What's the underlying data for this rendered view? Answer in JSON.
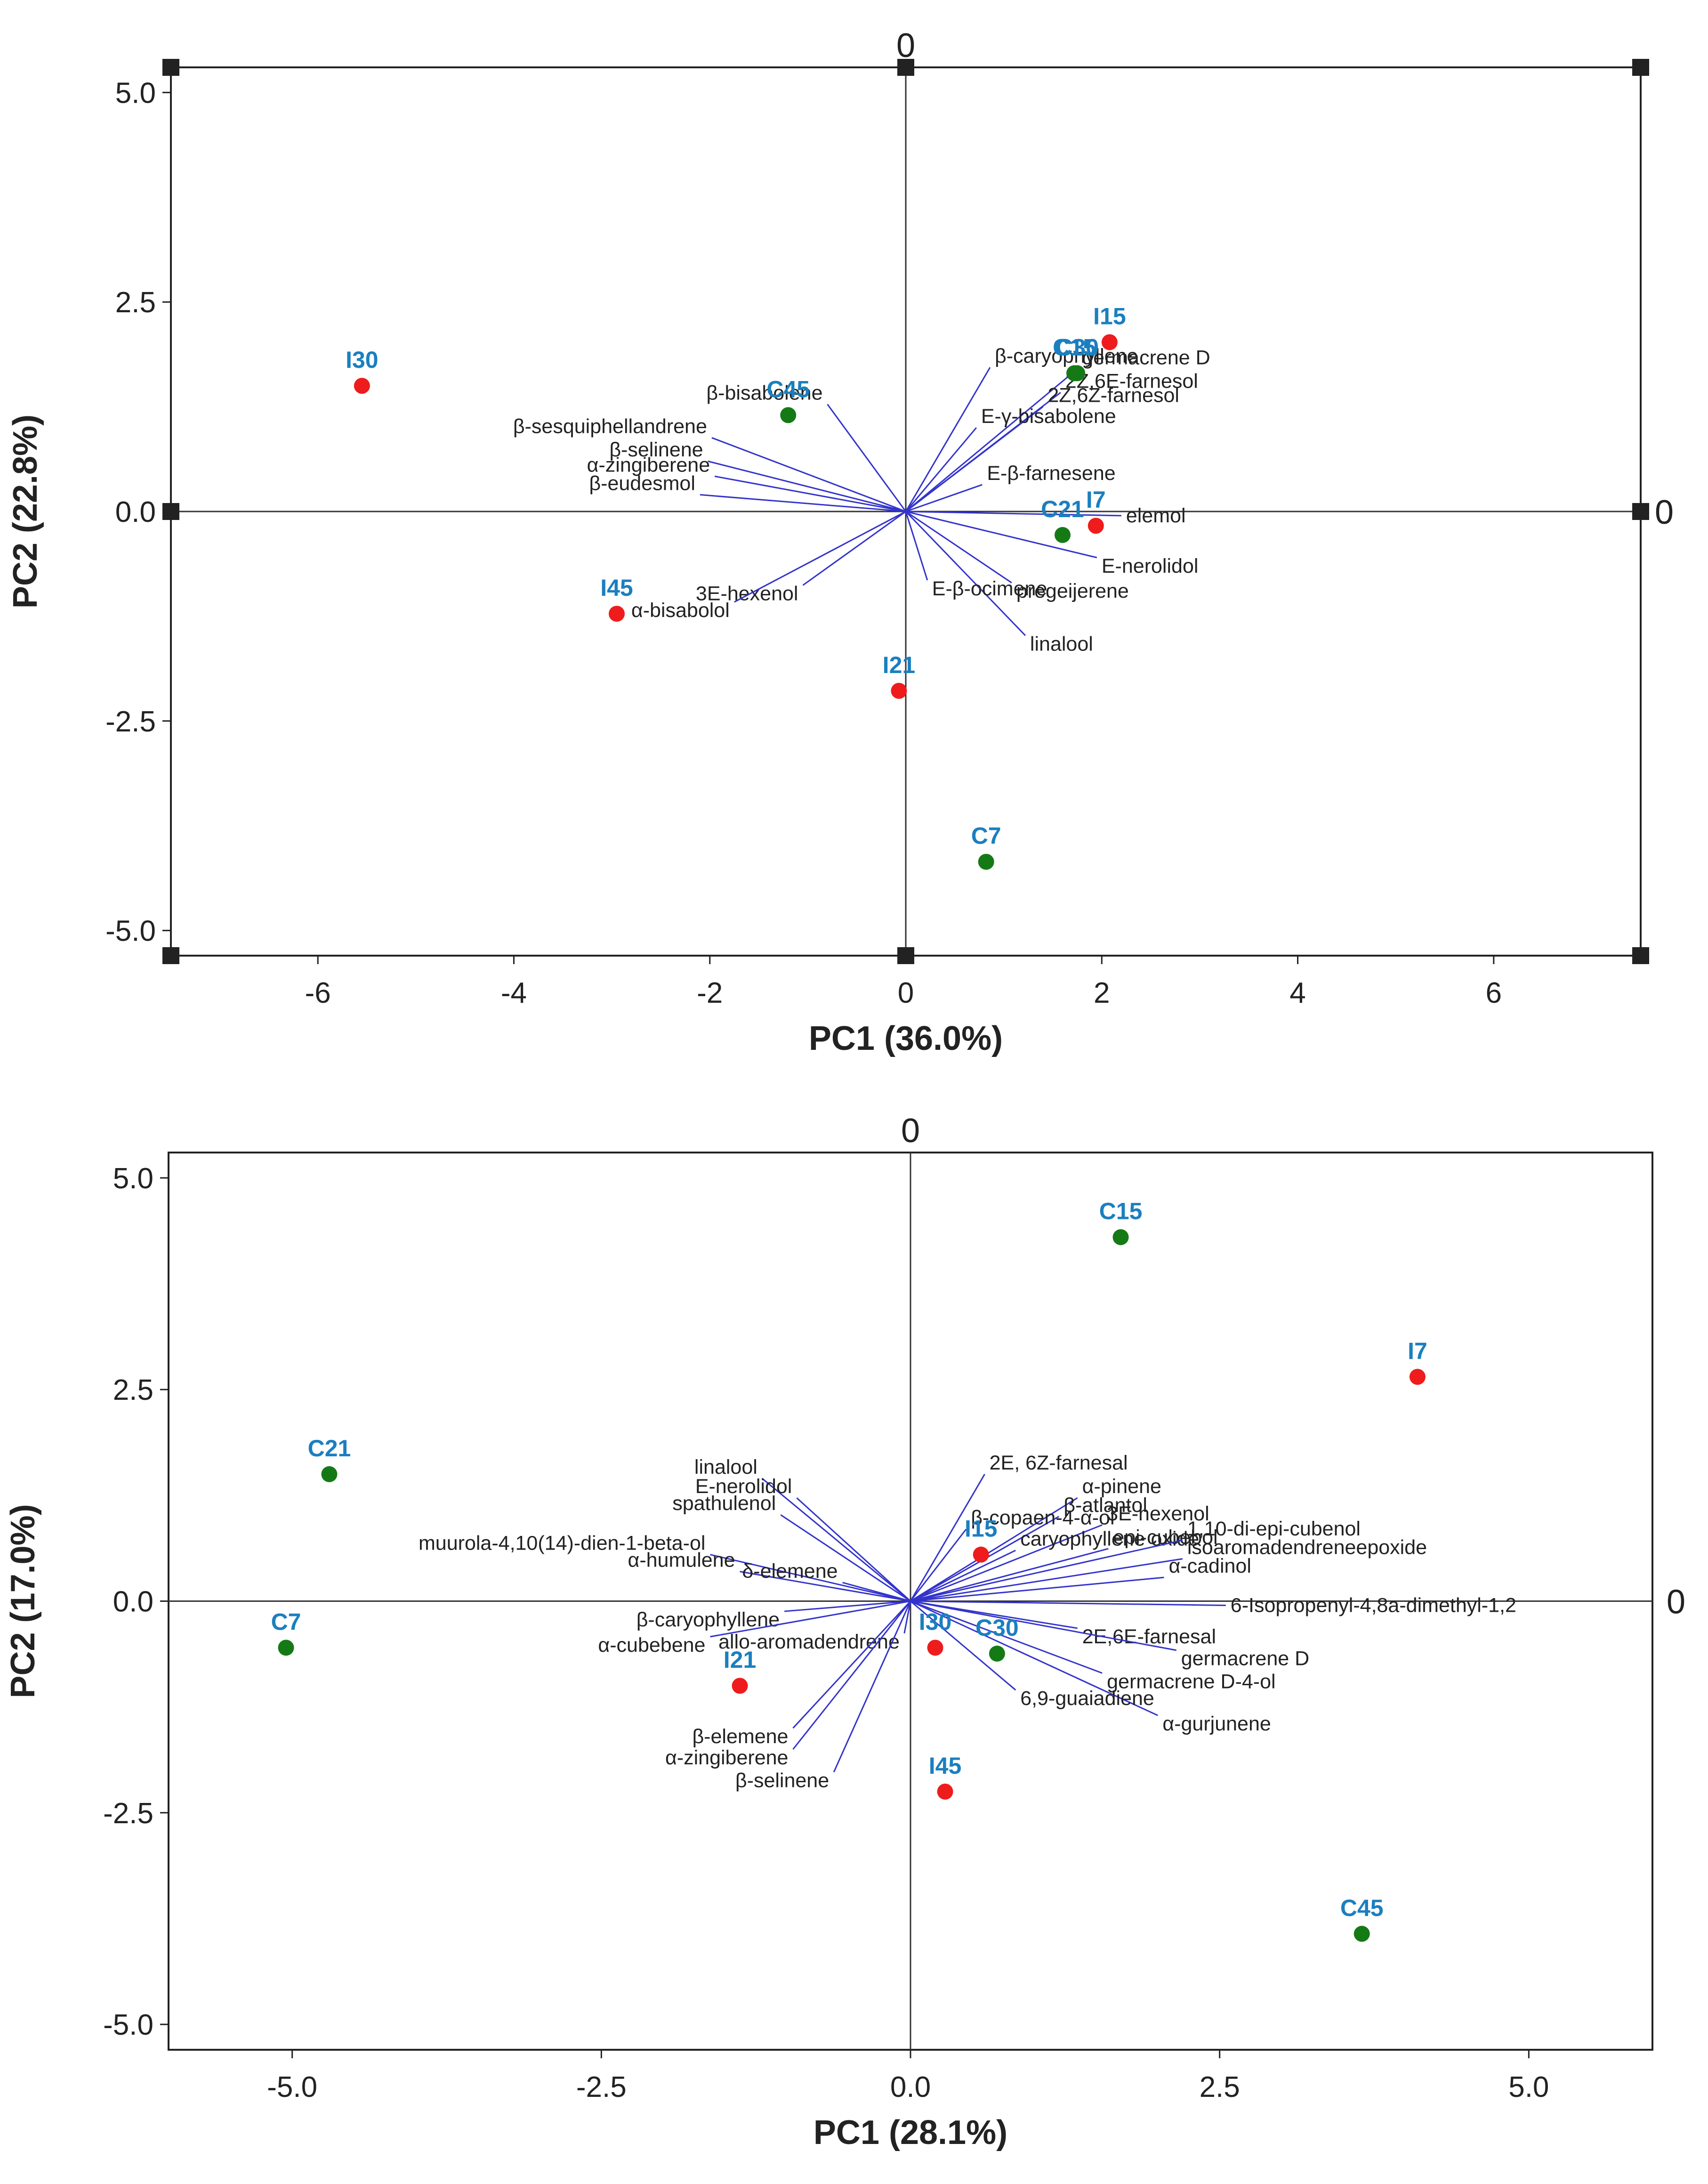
{
  "colors": {
    "vector": "#3333cc",
    "treated": "#ee1c1c",
    "control": "#157a15",
    "point_label": "#1b7fbf",
    "frame": "#222222"
  },
  "chart_data": [
    {
      "type": "scatter",
      "subtype": "pca-biplot",
      "xlabel": "PC1 (36.0%)",
      "ylabel": "PC2 (22.8%)",
      "xlim": [
        -7.5,
        7.5
      ],
      "ylim": [
        -5.3,
        5.3
      ],
      "x_ticks": [
        -6,
        -4,
        -2,
        0,
        2,
        4,
        6
      ],
      "x_tick_labels": [
        "-6",
        "-4",
        "-2",
        "0",
        "2",
        "4",
        "6"
      ],
      "y_ticks": [
        5,
        2.5,
        0,
        -2.5,
        -5
      ],
      "y_tick_labels": [
        "5.0",
        "2.5",
        "0.0",
        "-2.5",
        "-5.0"
      ],
      "zero_labels": [
        "0",
        "0"
      ],
      "corner_markers": true,
      "points": [
        {
          "label": "I30",
          "x": -5.55,
          "y": 1.5,
          "group": "treated"
        },
        {
          "label": "C45",
          "x": -1.2,
          "y": 1.15,
          "group": "control"
        },
        {
          "label": "I15",
          "x": 2.08,
          "y": 2.02,
          "group": "treated"
        },
        {
          "label": "C30",
          "x": 1.75,
          "y": 1.65,
          "group": "control"
        },
        {
          "label": "C15",
          "x": 1.72,
          "y": 1.65,
          "group": "control"
        },
        {
          "label": "I7",
          "x": 1.94,
          "y": -0.17,
          "group": "treated"
        },
        {
          "label": "C21",
          "x": 1.6,
          "y": -0.28,
          "group": "control"
        },
        {
          "label": "I45",
          "x": -2.95,
          "y": -1.22,
          "group": "treated"
        },
        {
          "label": "I21",
          "x": -0.07,
          "y": -2.14,
          "group": "treated"
        },
        {
          "label": "C7",
          "x": 0.82,
          "y": -4.18,
          "group": "control"
        }
      ],
      "vectors": [
        {
          "name": "β-caryophyllene",
          "x": 0.86,
          "y": 1.72
        },
        {
          "name": "β-bisabolene",
          "x": -0.8,
          "y": 1.28
        },
        {
          "name": "β-sesquiphellandrene",
          "x": -1.98,
          "y": 0.88
        },
        {
          "name": "β-selinene",
          "x": -2.02,
          "y": 0.6
        },
        {
          "name": "α-zingiberene",
          "x": -1.95,
          "y": 0.42
        },
        {
          "name": "β-eudesmol",
          "x": -2.1,
          "y": 0.2
        },
        {
          "name": "germacrene D",
          "x": 1.75,
          "y": 1.7
        },
        {
          "name": "2Z,6E-farnesol",
          "x": 1.58,
          "y": 1.42
        },
        {
          "name": "2Z,6Z-farnesol",
          "x": 1.4,
          "y": 1.25
        },
        {
          "name": "E-γ-bisabolene",
          "x": 0.72,
          "y": 1.0
        },
        {
          "name": "E-β-farnesene",
          "x": 0.78,
          "y": 0.32
        },
        {
          "name": "elemol",
          "x": 2.2,
          "y": -0.05
        },
        {
          "name": "E-nerolidol",
          "x": 1.95,
          "y": -0.55
        },
        {
          "name": "pregeijerene",
          "x": 1.08,
          "y": -0.85
        },
        {
          "name": "linalool",
          "x": 1.22,
          "y": -1.48
        },
        {
          "name": "E-β-ocimene",
          "x": 0.22,
          "y": -0.82
        },
        {
          "name": "3E-hexenol",
          "x": -1.05,
          "y": -0.88
        },
        {
          "name": "α-bisabolol",
          "x": -1.75,
          "y": -1.08
        }
      ]
    },
    {
      "type": "scatter",
      "subtype": "pca-biplot",
      "xlabel": "PC1 (28.1%)",
      "ylabel": "PC2 (17.0%)",
      "xlim": [
        -6.0,
        6.0
      ],
      "ylim": [
        -5.3,
        5.3
      ],
      "x_ticks": [
        -5,
        -2.5,
        0,
        2.5,
        5
      ],
      "x_tick_labels": [
        "-5.0",
        "-2.5",
        "0.0",
        "2.5",
        "5.0"
      ],
      "y_ticks": [
        5,
        2.5,
        0,
        -2.5,
        -5
      ],
      "y_tick_labels": [
        "5.0",
        "2.5",
        "0.0",
        "-2.5",
        "-5.0"
      ],
      "zero_labels": [
        "0",
        "0"
      ],
      "corner_markers": false,
      "points": [
        {
          "label": "C15",
          "x": 1.7,
          "y": 4.3,
          "group": "control"
        },
        {
          "label": "I7",
          "x": 4.1,
          "y": 2.65,
          "group": "treated"
        },
        {
          "label": "C21",
          "x": -4.7,
          "y": 1.5,
          "group": "control"
        },
        {
          "label": "C7",
          "x": -5.05,
          "y": -0.55,
          "group": "control"
        },
        {
          "label": "I15",
          "x": 0.57,
          "y": 0.55,
          "group": "treated"
        },
        {
          "label": "I30",
          "x": 0.2,
          "y": -0.55,
          "group": "treated"
        },
        {
          "label": "C30",
          "x": 0.7,
          "y": -0.62,
          "group": "control"
        },
        {
          "label": "I21",
          "x": -1.38,
          "y": -1.0,
          "group": "treated"
        },
        {
          "label": "I45",
          "x": 0.28,
          "y": -2.25,
          "group": "treated"
        },
        {
          "label": "C45",
          "x": 3.65,
          "y": -3.93,
          "group": "control"
        }
      ],
      "vectors": [
        {
          "name": "2E, 6Z-farnesal",
          "x": 0.6,
          "y": 1.5
        },
        {
          "name": "α-pinene",
          "x": 1.35,
          "y": 1.22
        },
        {
          "name": "β-atlantol",
          "x": 1.2,
          "y": 1.0
        },
        {
          "name": "β-copaen-4-α-ol",
          "x": 0.45,
          "y": 0.85
        },
        {
          "name": "3E-hexenol",
          "x": 1.55,
          "y": 0.9
        },
        {
          "name": "caryophyllene oxide",
          "x": 0.85,
          "y": 0.6
        },
        {
          "name": "epi-cubebol",
          "x": 1.6,
          "y": 0.62
        },
        {
          "name": "1,10-di-epi-cubenol",
          "x": 2.2,
          "y": 0.72
        },
        {
          "name": "isoaromadendreneepoxide",
          "x": 2.2,
          "y": 0.5
        },
        {
          "name": "α-cadinol",
          "x": 2.05,
          "y": 0.28
        },
        {
          "name": "6-Isopropenyl-4,8a-dimethyl-1,2",
          "x": 2.55,
          "y": -0.05
        },
        {
          "name": "2E,6E-farnesal",
          "x": 1.35,
          "y": -0.32
        },
        {
          "name": "germacrene D",
          "x": 2.15,
          "y": -0.58
        },
        {
          "name": "germacrene D-4-ol",
          "x": 1.55,
          "y": -0.85
        },
        {
          "name": "α-gurjunene",
          "x": 2.0,
          "y": -1.35
        },
        {
          "name": "6,9-guaiadiene",
          "x": 0.85,
          "y": -1.05
        },
        {
          "name": "allo-aromadendrene",
          "x": -0.05,
          "y": -0.38
        },
        {
          "name": "linalool",
          "x": -1.2,
          "y": 1.45
        },
        {
          "name": "E-nerolidol",
          "x": -0.92,
          "y": 1.22
        },
        {
          "name": "spathulenol",
          "x": -1.05,
          "y": 1.02
        },
        {
          "name": "muurola-4,10(14)-dien-1-beta-ol",
          "x": -1.62,
          "y": 0.55
        },
        {
          "name": "α-humulene",
          "x": -1.38,
          "y": 0.35
        },
        {
          "name": "δ-elemene",
          "x": -0.55,
          "y": 0.22
        },
        {
          "name": "β-caryophyllene",
          "x": -1.02,
          "y": -0.12
        },
        {
          "name": "α-cubebene",
          "x": -1.62,
          "y": -0.42
        },
        {
          "name": "β-elemene",
          "x": -0.95,
          "y": -1.5
        },
        {
          "name": "α-zingiberene",
          "x": -0.95,
          "y": -1.75
        },
        {
          "name": "β-selinene",
          "x": -0.62,
          "y": -2.02
        }
      ]
    }
  ]
}
